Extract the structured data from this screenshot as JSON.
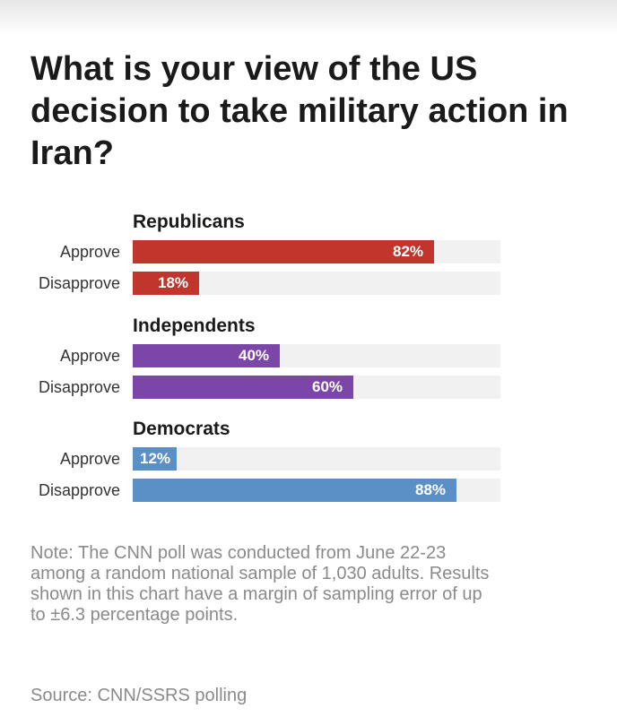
{
  "title": "What is your view of the US decision to take military action in Iran?",
  "note": "Note: The CNN poll was conducted from June 22-23 among a random national sample of 1,030 adults. Results shown in this chart have a margin of sampling error of up to ±6.3 percentage points.",
  "source": "Source: CNN/SSRS polling",
  "colors": {
    "Republicans": "#c1352c",
    "Independents": "#7b46a8",
    "Democrats": "#5a90c6",
    "track": "#f1f1f1"
  },
  "chart_data": {
    "type": "bar",
    "orientation": "horizontal",
    "title": "What is your view of the US decision to take military action in Iran?",
    "unit": "%",
    "xlim": [
      0,
      100
    ],
    "grid": false,
    "groups": [
      {
        "name": "Republicans",
        "rows": [
          {
            "label": "Approve",
            "value": 82,
            "display": "82%"
          },
          {
            "label": "Disapprove",
            "value": 18,
            "display": "18%"
          }
        ]
      },
      {
        "name": "Independents",
        "rows": [
          {
            "label": "Approve",
            "value": 40,
            "display": "40%"
          },
          {
            "label": "Disapprove",
            "value": 60,
            "display": "60%"
          }
        ]
      },
      {
        "name": "Democrats",
        "rows": [
          {
            "label": "Approve",
            "value": 12,
            "display": "12%"
          },
          {
            "label": "Disapprove",
            "value": 88,
            "display": "88%"
          }
        ]
      }
    ]
  }
}
